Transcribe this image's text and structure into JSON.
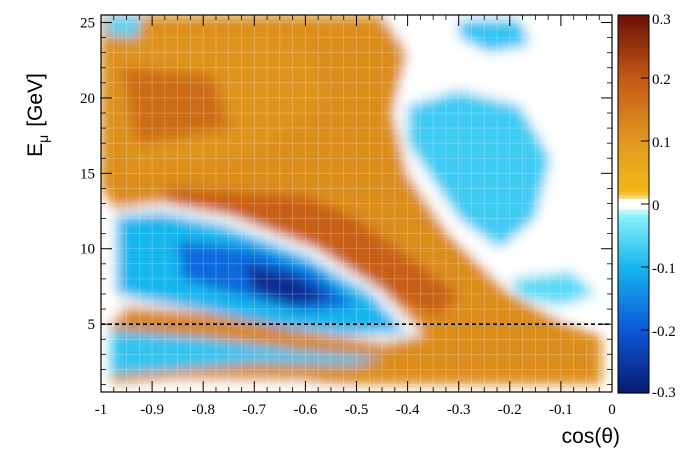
{
  "chart_data": {
    "type": "heatmap",
    "title": "",
    "xlabel": "cos(θ)",
    "ylabel_main": "E",
    "ylabel_sub": "μ",
    "ylabel_unit": "[GeV]",
    "xlim": [
      -1.0,
      0.0
    ],
    "ylim": [
      0.5,
      25.5
    ],
    "zlim": [
      -0.3,
      0.3
    ],
    "x_ticks": [
      {
        "value": -1.0,
        "label": "-1"
      },
      {
        "value": -0.9,
        "label": "-0.9"
      },
      {
        "value": -0.8,
        "label": "-0.8"
      },
      {
        "value": -0.7,
        "label": "-0.7"
      },
      {
        "value": -0.6,
        "label": "-0.6"
      },
      {
        "value": -0.5,
        "label": "-0.5"
      },
      {
        "value": -0.4,
        "label": "-0.4"
      },
      {
        "value": -0.3,
        "label": "-0.3"
      },
      {
        "value": -0.2,
        "label": "-0.2"
      },
      {
        "value": -0.1,
        "label": "-0.1"
      },
      {
        "value": 0.0,
        "label": "0"
      }
    ],
    "y_ticks": [
      {
        "value": 5,
        "label": "5"
      },
      {
        "value": 10,
        "label": "10"
      },
      {
        "value": 15,
        "label": "15"
      },
      {
        "value": 20,
        "label": "20"
      },
      {
        "value": 25,
        "label": "25"
      }
    ],
    "colorbar_ticks": [
      {
        "value": 0.3,
        "label": "0.3"
      },
      {
        "value": 0.2,
        "label": "0.2"
      },
      {
        "value": 0.1,
        "label": "0.1"
      },
      {
        "value": 0.0,
        "label": "0"
      },
      {
        "value": -0.1,
        "label": "-0.1"
      },
      {
        "value": -0.2,
        "label": "-0.2"
      },
      {
        "value": -0.3,
        "label": "-0.3"
      }
    ],
    "colorbar_stops": [
      {
        "value": -0.3,
        "color": "#0a1a6e"
      },
      {
        "value": -0.2,
        "color": "#0b56d8"
      },
      {
        "value": -0.1,
        "color": "#16b6ee"
      },
      {
        "value": -0.02,
        "color": "#86effa"
      },
      {
        "value": 0.0,
        "color": "#ffffff"
      },
      {
        "value": 0.02,
        "color": "#f2b818"
      },
      {
        "value": 0.1,
        "color": "#e09a20"
      },
      {
        "value": 0.2,
        "color": "#c55816"
      },
      {
        "value": 0.3,
        "color": "#6a1208"
      }
    ],
    "reference_line": {
      "y": 5,
      "style": "dashed",
      "color": "#000000"
    },
    "regions": [
      {
        "name": "orange-band",
        "cx": -0.55,
        "cy": 12.0,
        "value": 0.12
      },
      {
        "name": "upper-orange",
        "cx": -0.82,
        "cy": 19.0,
        "value": 0.11
      },
      {
        "name": "blue-deficit",
        "cx": -0.62,
        "cy": 7.5,
        "value": -0.27
      },
      {
        "name": "lower-cyan",
        "cx": -0.85,
        "cy": 3.0,
        "value": -0.08
      },
      {
        "name": "low-orange",
        "cx": -0.35,
        "cy": 2.0,
        "value": 0.06
      },
      {
        "name": "upper-right-cyan",
        "cx": -0.2,
        "cy": 17.5,
        "value": -0.07
      }
    ]
  }
}
